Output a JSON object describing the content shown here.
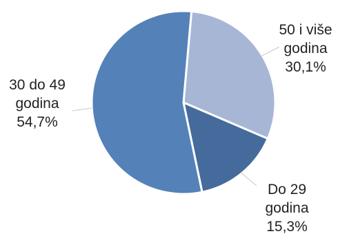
{
  "chart_data": {
    "type": "pie",
    "slices": [
      {
        "name": "50 i više godina",
        "value": 30.1,
        "value_label": "30,1%",
        "label_lines": [
          "50 i više",
          "godina"
        ],
        "color": "#a8b6d6"
      },
      {
        "name": "Do 29 godina",
        "value": 15.3,
        "value_label": "15,3%",
        "label_lines": [
          "Do 29",
          "godina"
        ],
        "color": "#456b9c"
      },
      {
        "name": "30 do 49 godina",
        "value": 54.7,
        "value_label": "54,7%",
        "label_lines": [
          "30 do 49",
          "godina"
        ],
        "color": "#5581b9"
      }
    ],
    "start_angle_deg": 5,
    "legend": "none",
    "title": ""
  }
}
